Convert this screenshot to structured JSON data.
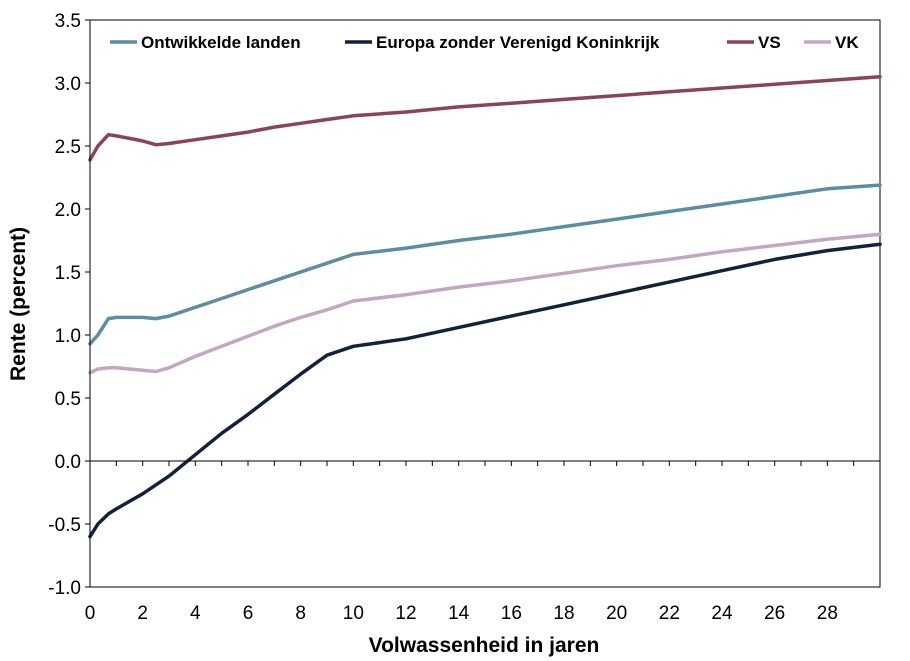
{
  "chart_data": {
    "type": "line",
    "title": "",
    "xlabel": "Volwassenheid in jaren",
    "ylabel": "Rente (percent)",
    "xlim": [
      0,
      30
    ],
    "ylim": [
      -1.0,
      3.5
    ],
    "xticks": [
      0,
      2,
      4,
      6,
      8,
      10,
      12,
      14,
      16,
      18,
      20,
      22,
      24,
      26,
      28
    ],
    "yticks": [
      -1.0,
      -0.5,
      0.0,
      0.5,
      1.0,
      1.5,
      2.0,
      2.5,
      3.0,
      3.5
    ],
    "ytick_labels": [
      "-1.0",
      "-0.5",
      "0.0",
      "0.5",
      "1.0",
      "1.5",
      "2.0",
      "2.5",
      "3.0",
      "3.5"
    ],
    "grid": false,
    "legend_position": "top",
    "series": [
      {
        "name": "Ontwikkelde landen",
        "color": "#5b8ea3",
        "x": [
          0,
          0.3,
          0.7,
          1,
          2,
          2.5,
          3,
          4,
          5,
          6,
          7,
          8,
          9,
          10,
          12,
          14,
          16,
          18,
          20,
          22,
          24,
          26,
          28,
          30
        ],
        "y": [
          0.93,
          1.0,
          1.13,
          1.14,
          1.14,
          1.13,
          1.15,
          1.22,
          1.29,
          1.36,
          1.43,
          1.5,
          1.57,
          1.64,
          1.69,
          1.75,
          1.8,
          1.86,
          1.92,
          1.98,
          2.04,
          2.1,
          2.16,
          2.19
        ]
      },
      {
        "name": "Europa zonder Verenigd Koninkrijk",
        "color": "#13213c",
        "x": [
          0,
          0.3,
          0.7,
          1,
          2,
          3,
          4,
          5,
          6,
          7,
          8,
          9,
          10,
          11,
          12,
          14,
          16,
          18,
          20,
          22,
          24,
          26,
          28,
          30
        ],
        "y": [
          -0.6,
          -0.5,
          -0.42,
          -0.38,
          -0.26,
          -0.12,
          0.05,
          0.22,
          0.37,
          0.53,
          0.69,
          0.84,
          0.91,
          0.94,
          0.97,
          1.06,
          1.15,
          1.24,
          1.33,
          1.42,
          1.51,
          1.6,
          1.67,
          1.72
        ]
      },
      {
        "name": "VS",
        "color": "#8b4454",
        "x": [
          0,
          0.3,
          0.7,
          1,
          1.5,
          2,
          2.5,
          3,
          4,
          5,
          6,
          7,
          8,
          9,
          10,
          12,
          14,
          16,
          18,
          20,
          22,
          24,
          26,
          28,
          30
        ],
        "y": [
          2.39,
          2.5,
          2.59,
          2.58,
          2.56,
          2.54,
          2.51,
          2.52,
          2.55,
          2.58,
          2.61,
          2.65,
          2.68,
          2.71,
          2.74,
          2.77,
          2.81,
          2.84,
          2.87,
          2.9,
          2.93,
          2.96,
          2.99,
          3.02,
          3.05
        ]
      },
      {
        "name": "VK",
        "color": "#c4a6be",
        "x": [
          0,
          0.3,
          0.7,
          1,
          2,
          2.5,
          3,
          4,
          5,
          6,
          7,
          8,
          9,
          10,
          12,
          14,
          16,
          18,
          20,
          22,
          24,
          26,
          28,
          30
        ],
        "y": [
          0.7,
          0.73,
          0.74,
          0.74,
          0.72,
          0.71,
          0.74,
          0.83,
          0.91,
          0.99,
          1.07,
          1.14,
          1.2,
          1.27,
          1.32,
          1.38,
          1.43,
          1.49,
          1.55,
          1.6,
          1.66,
          1.71,
          1.76,
          1.8
        ]
      }
    ]
  }
}
